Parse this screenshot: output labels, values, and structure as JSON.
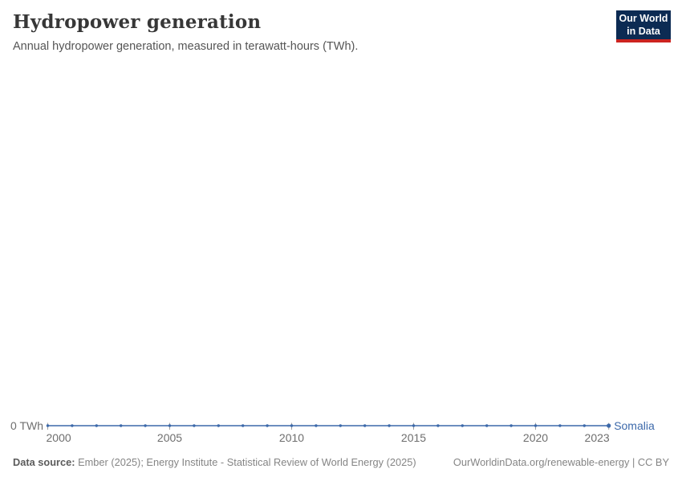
{
  "header": {
    "title": "Hydropower generation",
    "subtitle": "Annual hydropower generation, measured in terawatt-hours (TWh)."
  },
  "logo": {
    "line1": "Our World",
    "line2": "in Data"
  },
  "footer": {
    "source_label": "Data source:",
    "source_text": " Ember (2025); Energy Institute - Statistical Review of World Energy (2025)",
    "note": "OurWorldinData.org/renewable-energy | CC BY"
  },
  "colors": {
    "line": "#3c69aa",
    "axis_text": "#6e6e6e",
    "tick_mark": "#a0a0a0",
    "title": "#373737",
    "subtitle": "#555555",
    "footer_text": "#858585",
    "logo_background": "#0c2b53",
    "logo_bar": "#cc2420"
  },
  "chart_data": {
    "type": "line",
    "title": "Hydropower generation",
    "subtitle": "Annual hydropower generation, measured in terawatt-hours (TWh).",
    "x": [
      2000,
      2001,
      2002,
      2003,
      2004,
      2005,
      2006,
      2007,
      2008,
      2009,
      2010,
      2011,
      2012,
      2013,
      2014,
      2015,
      2016,
      2017,
      2018,
      2019,
      2020,
      2021,
      2022,
      2023
    ],
    "series": [
      {
        "name": "Somalia",
        "color": "#3c69aa",
        "values": [
          0,
          0,
          0,
          0,
          0,
          0,
          0,
          0,
          0,
          0,
          0,
          0,
          0,
          0,
          0,
          0,
          0,
          0,
          0,
          0,
          0,
          0,
          0,
          0
        ]
      }
    ],
    "x_ticks": [
      2000,
      2005,
      2010,
      2015,
      2020,
      2023
    ],
    "x_tick_labels": [
      "2000",
      "2005",
      "2010",
      "2015",
      "2020",
      "2023"
    ],
    "y_tick_label": "0 TWh",
    "y_axis": {
      "min": 0,
      "unit": "TWh"
    },
    "x_axis": {
      "range": [
        2000,
        2023
      ]
    },
    "grid": false,
    "legend_position": "end-of-line"
  }
}
